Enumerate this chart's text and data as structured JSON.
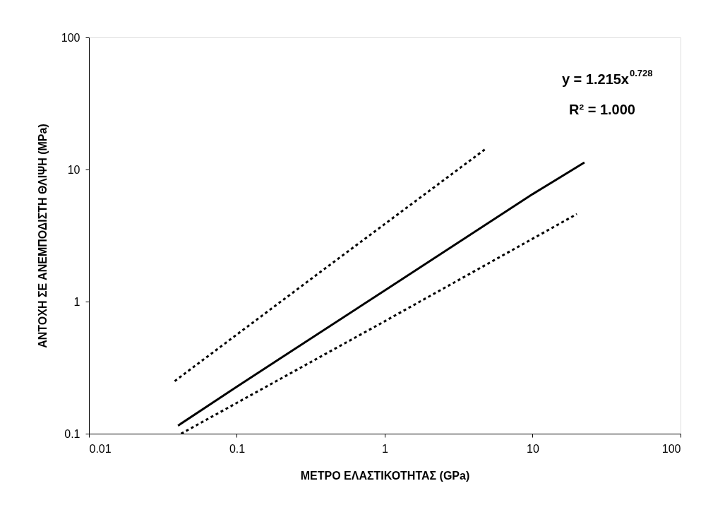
{
  "chart_data": {
    "type": "line",
    "xlabel": "ΜΕΤΡΟ ΕΛΑΣΤΙΚΟΤΗΤΑΣ (GPa)",
    "ylabel": "ΑΝΤΟΧΗ ΣΕ ΑΝΕΜΠΟΔΙΣΤΗ ΘΛΙΨΗ (MPa)",
    "log": "xy",
    "xlim": [
      0.01,
      100
    ],
    "ylim": [
      0.1,
      100
    ],
    "xticks": [
      0.01,
      0.1,
      1,
      10,
      100
    ],
    "yticks": [
      0.1,
      1,
      10,
      100
    ],
    "grid": false,
    "marker": "none",
    "series": [
      {
        "color": "#000000",
        "line_style": "solid",
        "x": [
          0.04,
          0.1,
          1,
          10,
          22.4
        ],
        "values": [
          0.115,
          0.227,
          1.215,
          6.51,
          11.3
        ]
      },
      {
        "color": "#000000",
        "line_style": "dotted",
        "x": [
          0.038,
          0.4,
          4.8
        ],
        "values": [
          0.25,
          1.8,
          14.3
        ]
      },
      {
        "color": "#000000",
        "line_style": "dotted",
        "x": [
          0.042,
          1,
          19.9
        ],
        "values": [
          0.1,
          0.71,
          4.6
        ]
      }
    ],
    "annotations": [
      "y = 1.215x$^{0.728}$",
      "R² = 1.000"
    ]
  }
}
